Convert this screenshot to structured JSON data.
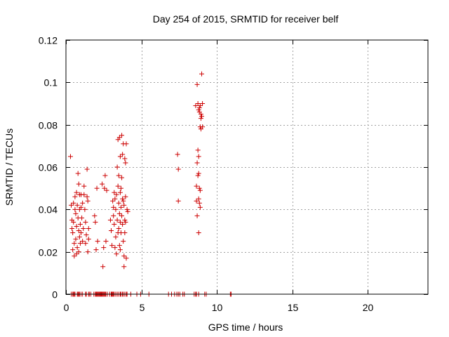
{
  "chart_data": {
    "type": "scatter",
    "title": "Day 254 of 2015, SRMTID for receiver belf",
    "xlabel": "GPS time / hours",
    "ylabel": "SRMTID / TECUs",
    "xlim": [
      0,
      24
    ],
    "ylim": [
      0,
      0.12
    ],
    "xticks": [
      0,
      5,
      10,
      15,
      20
    ],
    "xtick_labels": [
      "0",
      "5",
      "10",
      "15",
      "20"
    ],
    "yticks": [
      0,
      0.02,
      0.04,
      0.06,
      0.08,
      0.1,
      0.12
    ],
    "ytick_labels": [
      "0",
      "0.02",
      "0.04",
      "0.06",
      "0.08",
      "0.1",
      "0.12"
    ],
    "grid": true,
    "marker": "plus",
    "color": "#cc0000",
    "series": [
      {
        "name": "SRMTID",
        "points": [
          [
            0.3,
            0.065
          ],
          [
            0.35,
            0.042
          ],
          [
            0.4,
            0.035
          ],
          [
            0.4,
            0.031
          ],
          [
            0.45,
            0.029
          ],
          [
            0.45,
            0.021
          ],
          [
            0.5,
            0.034
          ],
          [
            0.5,
            0.043
          ],
          [
            0.55,
            0.024
          ],
          [
            0.55,
            0.018
          ],
          [
            0.6,
            0.046
          ],
          [
            0.6,
            0.04
          ],
          [
            0.65,
            0.038
          ],
          [
            0.65,
            0.026
          ],
          [
            0.7,
            0.048
          ],
          [
            0.7,
            0.032
          ],
          [
            0.7,
            0.019
          ],
          [
            0.75,
            0.042
          ],
          [
            0.75,
            0.022
          ],
          [
            0.8,
            0.057
          ],
          [
            0.8,
            0.036
          ],
          [
            0.85,
            0.052
          ],
          [
            0.85,
            0.03
          ],
          [
            0.85,
            0.02
          ],
          [
            0.9,
            0.047
          ],
          [
            0.9,
            0.04
          ],
          [
            0.9,
            0.027
          ],
          [
            0.95,
            0.033
          ],
          [
            0.95,
            0.024
          ],
          [
            1.0,
            0.047
          ],
          [
            1.0,
            0.041
          ],
          [
            1.0,
            0.029
          ],
          [
            1.05,
            0.036
          ],
          [
            1.1,
            0.043
          ],
          [
            1.1,
            0.025
          ],
          [
            1.15,
            0.031
          ],
          [
            1.2,
            0.051
          ],
          [
            1.2,
            0.047
          ],
          [
            1.25,
            0.04
          ],
          [
            1.3,
            0.034
          ],
          [
            1.3,
            0.024
          ],
          [
            1.35,
            0.028
          ],
          [
            1.4,
            0.059
          ],
          [
            1.4,
            0.046
          ],
          [
            1.45,
            0.044
          ],
          [
            1.45,
            0.02
          ],
          [
            1.5,
            0.031
          ],
          [
            1.5,
            0.026
          ],
          [
            1.9,
            0.037
          ],
          [
            1.95,
            0.034
          ],
          [
            2.0,
            0.021
          ],
          [
            2.05,
            0.05
          ],
          [
            2.1,
            0.025
          ],
          [
            2.4,
            0.052
          ],
          [
            2.45,
            0.013
          ],
          [
            2.5,
            0.022
          ],
          [
            2.55,
            0.05
          ],
          [
            2.6,
            0.056
          ],
          [
            2.65,
            0.025
          ],
          [
            2.7,
            0.049
          ],
          [
            2.95,
            0.035
          ],
          [
            3.0,
            0.03
          ],
          [
            3.05,
            0.023
          ],
          [
            3.1,
            0.044
          ],
          [
            3.15,
            0.041
          ],
          [
            3.15,
            0.037
          ],
          [
            3.2,
            0.048
          ],
          [
            3.2,
            0.033
          ],
          [
            3.25,
            0.045
          ],
          [
            3.25,
            0.022
          ],
          [
            3.3,
            0.04
          ],
          [
            3.3,
            0.027
          ],
          [
            3.35,
            0.047
          ],
          [
            3.35,
            0.019
          ],
          [
            3.4,
            0.06
          ],
          [
            3.4,
            0.035
          ],
          [
            3.45,
            0.073
          ],
          [
            3.45,
            0.051
          ],
          [
            3.45,
            0.029
          ],
          [
            3.5,
            0.056
          ],
          [
            3.5,
            0.043
          ],
          [
            3.5,
            0.031
          ],
          [
            3.55,
            0.074
          ],
          [
            3.55,
            0.038
          ],
          [
            3.55,
            0.023
          ],
          [
            3.6,
            0.065
          ],
          [
            3.6,
            0.048
          ],
          [
            3.6,
            0.034
          ],
          [
            3.6,
            0.021
          ],
          [
            3.65,
            0.05
          ],
          [
            3.65,
            0.041
          ],
          [
            3.65,
            0.029
          ],
          [
            3.7,
            0.075
          ],
          [
            3.7,
            0.055
          ],
          [
            3.7,
            0.037
          ],
          [
            3.75,
            0.066
          ],
          [
            3.75,
            0.045
          ],
          [
            3.75,
            0.033
          ],
          [
            3.8,
            0.071
          ],
          [
            3.8,
            0.044
          ],
          [
            3.8,
            0.025
          ],
          [
            3.85,
            0.042
          ],
          [
            3.85,
            0.018
          ],
          [
            3.85,
            0.013
          ],
          [
            3.9,
            0.064
          ],
          [
            3.9,
            0.035
          ],
          [
            3.9,
            0.029
          ],
          [
            3.95,
            0.062
          ],
          [
            3.95,
            0.046
          ],
          [
            3.95,
            0.034
          ],
          [
            4.0,
            0.071
          ],
          [
            4.0,
            0.017
          ],
          [
            4.05,
            0.04
          ],
          [
            4.1,
            0.039
          ],
          [
            7.4,
            0.066
          ],
          [
            7.45,
            0.059
          ],
          [
            7.45,
            0.044
          ],
          [
            8.6,
            0.089
          ],
          [
            8.65,
            0.051
          ],
          [
            8.65,
            0.044
          ],
          [
            8.7,
            0.099
          ],
          [
            8.7,
            0.062
          ],
          [
            8.7,
            0.037
          ],
          [
            8.75,
            0.09
          ],
          [
            8.75,
            0.068
          ],
          [
            8.75,
            0.056
          ],
          [
            8.8,
            0.087
          ],
          [
            8.8,
            0.065
          ],
          [
            8.8,
            0.057
          ],
          [
            8.8,
            0.045
          ],
          [
            8.85,
            0.088
          ],
          [
            8.85,
            0.086
          ],
          [
            8.85,
            0.05
          ],
          [
            8.85,
            0.043
          ],
          [
            8.9,
            0.089
          ],
          [
            8.9,
            0.079
          ],
          [
            8.9,
            0.049
          ],
          [
            8.9,
            0.041
          ],
          [
            8.95,
            0.085
          ],
          [
            8.95,
            0.083
          ],
          [
            8.95,
            0.078
          ],
          [
            9.0,
            0.104
          ],
          [
            9.0,
            0.084
          ],
          [
            9.05,
            0.079
          ],
          [
            9.05,
            0.09
          ],
          [
            8.8,
            0.029
          ],
          [
            0.35,
            0
          ],
          [
            0.45,
            0
          ],
          [
            0.5,
            0
          ],
          [
            0.55,
            0
          ],
          [
            0.6,
            0
          ],
          [
            0.75,
            0
          ],
          [
            0.8,
            0
          ],
          [
            0.85,
            0
          ],
          [
            0.9,
            0
          ],
          [
            1.0,
            0
          ],
          [
            1.1,
            0
          ],
          [
            1.3,
            0
          ],
          [
            1.35,
            0
          ],
          [
            1.5,
            0
          ],
          [
            1.55,
            0
          ],
          [
            1.65,
            0
          ],
          [
            1.85,
            0
          ],
          [
            1.95,
            0
          ],
          [
            2.0,
            0
          ],
          [
            2.05,
            0
          ],
          [
            2.1,
            0
          ],
          [
            2.15,
            0
          ],
          [
            2.2,
            0
          ],
          [
            2.25,
            0
          ],
          [
            2.3,
            0
          ],
          [
            2.35,
            0
          ],
          [
            2.4,
            0
          ],
          [
            2.45,
            0
          ],
          [
            2.5,
            0
          ],
          [
            2.55,
            0
          ],
          [
            2.6,
            0
          ],
          [
            2.65,
            0
          ],
          [
            2.75,
            0
          ],
          [
            2.9,
            0
          ],
          [
            3.0,
            0
          ],
          [
            3.05,
            0
          ],
          [
            3.1,
            0
          ],
          [
            3.15,
            0
          ],
          [
            3.2,
            0
          ],
          [
            3.3,
            0
          ],
          [
            3.4,
            0
          ],
          [
            3.5,
            0
          ],
          [
            3.6,
            0
          ],
          [
            3.65,
            0
          ],
          [
            3.75,
            0
          ],
          [
            3.8,
            0
          ],
          [
            3.9,
            0
          ],
          [
            4.0,
            0
          ],
          [
            4.05,
            0
          ],
          [
            4.3,
            0
          ],
          [
            4.7,
            0
          ],
          [
            4.95,
            0
          ],
          [
            5.5,
            0
          ],
          [
            6.8,
            0
          ],
          [
            7.0,
            0
          ],
          [
            7.2,
            0
          ],
          [
            7.35,
            0
          ],
          [
            7.45,
            0
          ],
          [
            7.55,
            0
          ],
          [
            7.75,
            0
          ],
          [
            7.85,
            0
          ],
          [
            8.5,
            0
          ],
          [
            8.6,
            0
          ],
          [
            8.65,
            0
          ],
          [
            8.8,
            0
          ],
          [
            9.2,
            0
          ],
          [
            9.3,
            0
          ],
          [
            10.9,
            0
          ],
          [
            10.95,
            0
          ]
        ]
      }
    ]
  }
}
